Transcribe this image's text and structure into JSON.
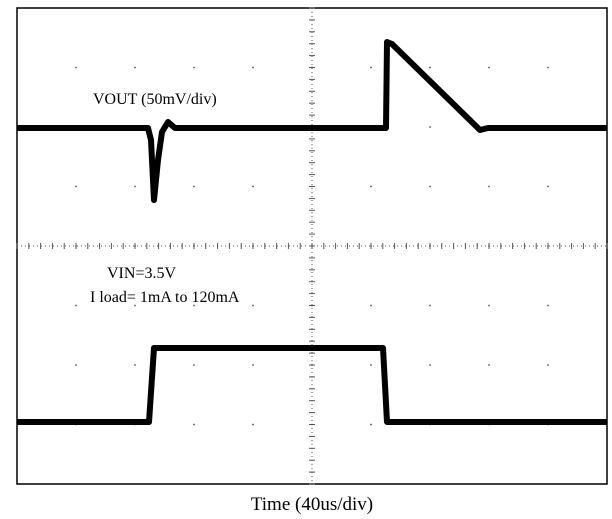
{
  "screen": {
    "labels": [
      "VOUT (50mV/div)",
      "VIN=3.5V",
      "I load= 1mA to 120mA"
    ]
  },
  "xlabel": "Time (40us/div)"
}
